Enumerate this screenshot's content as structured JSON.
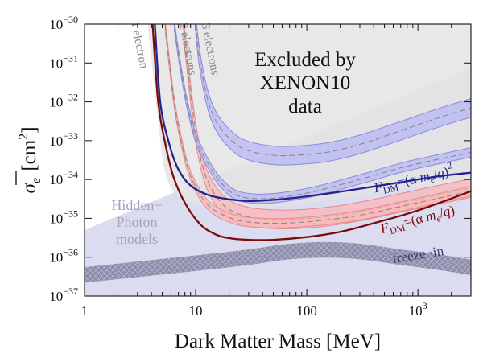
{
  "chart_data": {
    "type": "line",
    "title": "",
    "xlabel": "Dark Matter Mass [MeV]",
    "ylabel_main": "σ",
    "ylabel_sub": "e",
    "ylabel_unit": "[cm",
    "ylabel_unit_exp": "2",
    "ylabel_unit_close": "]",
    "x_scale": "log",
    "y_scale": "log",
    "xlim": [
      1,
      3000
    ],
    "ylim": [
      1e-37,
      1e-30
    ],
    "x_ticks": [
      {
        "value": 1,
        "base": "1",
        "exp": ""
      },
      {
        "value": 10,
        "base": "10",
        "exp": ""
      },
      {
        "value": 100,
        "base": "100",
        "exp": ""
      },
      {
        "value": 1000,
        "base": "10",
        "exp": "3"
      }
    ],
    "y_ticks": [
      {
        "value": 1e-30,
        "base": "10",
        "exp": "−30"
      },
      {
        "value": 1e-31,
        "base": "10",
        "exp": "−31"
      },
      {
        "value": 1e-32,
        "base": "10",
        "exp": "−32"
      },
      {
        "value": 1e-33,
        "base": "10",
        "exp": "−33"
      },
      {
        "value": 1e-34,
        "base": "10",
        "exp": "−34"
      },
      {
        "value": 1e-35,
        "base": "10",
        "exp": "−35"
      },
      {
        "value": 1e-36,
        "base": "10",
        "exp": "−36"
      },
      {
        "value": 1e-37,
        "base": "10",
        "exp": "−37"
      }
    ],
    "colors": {
      "excluded": "#e4e4e4",
      "hidden_photon": "#dcdcf0",
      "freeze_in": "#8d8dab",
      "blue_band": "#b5b5f5",
      "blue_edge": "#8a8ae0",
      "red_band": "#fbb5b5",
      "red_edge": "#e88a8a",
      "blue_line": "#23238f",
      "red_line": "#7a0c0c",
      "dashed": "#888888",
      "gray_text": "#888888"
    },
    "excluded_region": {
      "label_lines": [
        "Excluded by",
        "XENON10",
        "data"
      ],
      "boundary": [
        [
          3.7,
          1e-30
        ],
        [
          4.4,
          1e-32
        ],
        [
          5.2,
          2e-34
        ],
        [
          6.3,
          5e-35
        ],
        [
          8,
          3e-35
        ],
        [
          12,
          2.2e-35
        ],
        [
          22,
          1.8e-35
        ],
        [
          35,
          1.8e-35
        ],
        [
          60,
          2.1e-35
        ],
        [
          110,
          2.6e-35
        ],
        [
          250,
          3.6e-35
        ],
        [
          700,
          5.5e-35
        ],
        [
          3000,
          9e-35
        ]
      ]
    },
    "hidden_photon_region": {
      "label_lines": [
        "Hidden−",
        "Photon",
        "models"
      ],
      "upper_edge": [
        [
          1,
          5e-36
        ],
        [
          3000,
          7.5e-32
        ]
      ]
    },
    "freeze_in_band": {
      "label": "freeze−in",
      "center": [
        [
          1,
          3.5e-37
        ],
        [
          10,
          7e-37
        ],
        [
          30,
          1e-36
        ],
        [
          70,
          1.4e-36
        ],
        [
          150,
          1.55e-36
        ],
        [
          300,
          1.4e-36
        ],
        [
          700,
          1e-36
        ],
        [
          1500,
          7.5e-37
        ],
        [
          3000,
          5.5e-37
        ]
      ],
      "half_width_decades": 0.2
    },
    "series": [
      {
        "name": "F",
        "label_sub": "DM",
        "label_rest": "=(α m",
        "label_me_sub": "e",
        "label_tail": "/q)",
        "label_exp": "2",
        "style": "blue",
        "points": [
          [
            4.3,
            1e-30
          ],
          [
            4.8,
            1e-32
          ],
          [
            5.8,
            8e-34
          ],
          [
            7,
            1.8e-34
          ],
          [
            9,
            7e-35
          ],
          [
            13,
            4e-35
          ],
          [
            20,
            3.1e-35
          ],
          [
            30,
            2.8e-35
          ],
          [
            50,
            3e-35
          ],
          [
            80,
            3.4e-35
          ],
          [
            150,
            4.3e-35
          ],
          [
            300,
            5.8e-35
          ],
          [
            700,
            8.5e-35
          ],
          [
            1500,
            1.2e-34
          ],
          [
            3000,
            1.5e-34
          ]
        ]
      },
      {
        "name": "F",
        "label_sub": "DM",
        "label_rest": "=(α m",
        "label_me_sub": "e",
        "label_tail": "/q)",
        "label_exp": "",
        "style": "red",
        "points": [
          [
            4.1,
            1e-30
          ],
          [
            4.6,
            1e-32
          ],
          [
            5.3,
            9e-34
          ],
          [
            6.3,
            1.2e-34
          ],
          [
            8,
            2.5e-35
          ],
          [
            11,
            7e-36
          ],
          [
            15,
            3.9e-36
          ],
          [
            20,
            3.1e-36
          ],
          [
            30,
            2.8e-36
          ],
          [
            50,
            2.8e-36
          ],
          [
            100,
            3.3e-36
          ],
          [
            200,
            4.5e-36
          ],
          [
            400,
            7.5e-36
          ],
          [
            1000,
            1.6e-35
          ],
          [
            3000,
            5e-35
          ]
        ]
      }
    ],
    "blue_bands": [
      {
        "center": [
          [
            10,
            1e-30
          ],
          [
            11,
            1e-31
          ],
          [
            13,
            1e-32
          ],
          [
            16,
            2.5e-33
          ],
          [
            22,
            9e-34
          ],
          [
            30,
            5.5e-34
          ],
          [
            50,
            4.2e-34
          ],
          [
            80,
            4.2e-34
          ],
          [
            150,
            5e-34
          ],
          [
            300,
            8e-34
          ],
          [
            700,
            1.8e-33
          ],
          [
            1500,
            3.8e-33
          ],
          [
            3000,
            7e-33
          ]
        ],
        "half_width_decades": 0.24
      },
      {
        "center": [
          [
            6.4,
            1e-30
          ],
          [
            7.2,
            1e-31
          ],
          [
            8.3,
            1e-32
          ],
          [
            10,
            1.2e-33
          ],
          [
            13,
            2.5e-34
          ],
          [
            17,
            8e-35
          ],
          [
            23,
            4e-35
          ],
          [
            35,
            3.2e-35
          ],
          [
            60,
            3.5e-35
          ],
          [
            120,
            5e-35
          ],
          [
            300,
            1e-34
          ],
          [
            800,
            2.2e-34
          ],
          [
            3000,
            5e-34
          ]
        ],
        "half_width_decades": 0.12
      }
    ],
    "red_bands": [
      {
        "center": [
          [
            7.7,
            1e-30
          ],
          [
            8.4,
            1e-31
          ],
          [
            9.2,
            1e-32
          ],
          [
            10.3,
            1e-33
          ],
          [
            12,
            1.5e-34
          ],
          [
            15,
            4e-35
          ],
          [
            20,
            1.7e-35
          ],
          [
            30,
            1.1e-35
          ],
          [
            50,
            9.5e-36
          ],
          [
            80,
            9.5e-36
          ],
          [
            150,
            1.1e-35
          ],
          [
            300,
            1.5e-35
          ],
          [
            700,
            2.5e-35
          ],
          [
            1500,
            4e-35
          ],
          [
            3000,
            6e-35
          ]
        ],
        "half_width_decades": 0.24
      },
      {
        "center": [
          [
            5.3,
            1e-30
          ],
          [
            5.8,
            1e-31
          ],
          [
            6.4,
            1e-32
          ],
          [
            7.4,
            1e-33
          ],
          [
            8.8,
            1.5e-34
          ],
          [
            11,
            4e-35
          ],
          [
            14,
            1.8e-35
          ],
          [
            20,
            1.05e-35
          ],
          [
            30,
            8e-36
          ],
          [
            60,
            7.5e-36
          ],
          [
            120,
            8.5e-36
          ],
          [
            300,
            1.2e-35
          ],
          [
            800,
            2.2e-35
          ],
          [
            3000,
            5e-35
          ]
        ],
        "half_width_decades": 0.12
      }
    ],
    "electron_labels": [
      {
        "text": "1 electron",
        "x": 2.9,
        "y": 2.8e-31
      },
      {
        "text": "2 electrons",
        "x": 7.9,
        "y": 2.2e-31
      },
      {
        "text": "3 electrons",
        "x": 12.6,
        "y": 2.2e-31
      }
    ]
  }
}
